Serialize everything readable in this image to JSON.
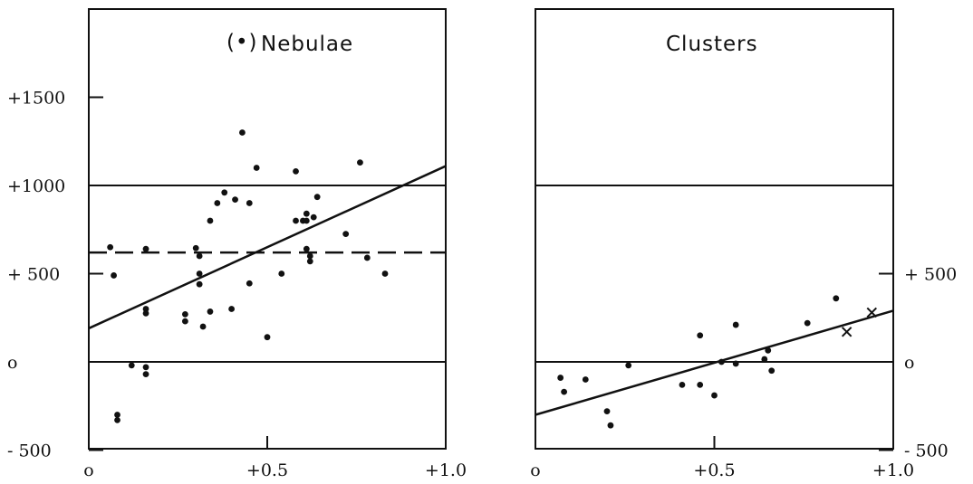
{
  "chart_data": [
    {
      "type": "scatter",
      "title": "Nebulae",
      "title_marker": "(•)",
      "xlim": [
        0,
        1.0
      ],
      "ylim": [
        -500,
        2000
      ],
      "x_ticks": [
        {
          "value": 0,
          "label": "o"
        },
        {
          "value": 0.5,
          "label": "+0.5"
        },
        {
          "value": 1.0,
          "label": "+1.0"
        }
      ],
      "y_ticks": [
        {
          "value": 1500,
          "label": "+1500"
        },
        {
          "value": 1000,
          "label": "+1000"
        },
        {
          "value": 500,
          "label": "+ 500"
        },
        {
          "value": 0,
          "label": "o"
        },
        {
          "value": -500,
          "label": "- 500"
        }
      ],
      "reference_lines": [
        0,
        1000
      ],
      "mean_line": 620,
      "fit_line": {
        "x": [
          0,
          1.0
        ],
        "y": [
          190,
          1110
        ]
      },
      "points": [
        {
          "x": 0.06,
          "y": 650
        },
        {
          "x": 0.07,
          "y": 490
        },
        {
          "x": 0.08,
          "y": -300
        },
        {
          "x": 0.08,
          "y": -330
        },
        {
          "x": 0.12,
          "y": -20
        },
        {
          "x": 0.16,
          "y": 640
        },
        {
          "x": 0.16,
          "y": 300
        },
        {
          "x": 0.16,
          "y": 275
        },
        {
          "x": 0.16,
          "y": -30
        },
        {
          "x": 0.16,
          "y": -70
        },
        {
          "x": 0.27,
          "y": 270
        },
        {
          "x": 0.27,
          "y": 230
        },
        {
          "x": 0.3,
          "y": 645
        },
        {
          "x": 0.31,
          "y": 600
        },
        {
          "x": 0.31,
          "y": 500
        },
        {
          "x": 0.31,
          "y": 440
        },
        {
          "x": 0.32,
          "y": 200
        },
        {
          "x": 0.34,
          "y": 800
        },
        {
          "x": 0.34,
          "y": 285
        },
        {
          "x": 0.36,
          "y": 900
        },
        {
          "x": 0.38,
          "y": 960
        },
        {
          "x": 0.4,
          "y": 300
        },
        {
          "x": 0.41,
          "y": 920
        },
        {
          "x": 0.43,
          "y": 1300
        },
        {
          "x": 0.45,
          "y": 900
        },
        {
          "x": 0.45,
          "y": 445
        },
        {
          "x": 0.47,
          "y": 1100
        },
        {
          "x": 0.5,
          "y": 140
        },
        {
          "x": 0.54,
          "y": 500
        },
        {
          "x": 0.58,
          "y": 1080
        },
        {
          "x": 0.58,
          "y": 800
        },
        {
          "x": 0.6,
          "y": 800
        },
        {
          "x": 0.61,
          "y": 840
        },
        {
          "x": 0.61,
          "y": 800
        },
        {
          "x": 0.61,
          "y": 640
        },
        {
          "x": 0.62,
          "y": 600
        },
        {
          "x": 0.62,
          "y": 570
        },
        {
          "x": 0.63,
          "y": 820
        },
        {
          "x": 0.64,
          "y": 935
        },
        {
          "x": 0.72,
          "y": 725
        },
        {
          "x": 0.76,
          "y": 1130
        },
        {
          "x": 0.78,
          "y": 590
        },
        {
          "x": 0.83,
          "y": 500
        }
      ]
    },
    {
      "type": "scatter",
      "title": "Clusters",
      "xlim": [
        0,
        1.0
      ],
      "ylim": [
        -500,
        2000
      ],
      "x_ticks": [
        {
          "value": 0,
          "label": "o"
        },
        {
          "value": 0.5,
          "label": "+0.5"
        },
        {
          "value": 1.0,
          "label": "+1.0"
        }
      ],
      "y_ticks": [
        {
          "value": 500,
          "label": "+ 500"
        },
        {
          "value": 0,
          "label": "o"
        },
        {
          "value": -500,
          "label": "- 500"
        }
      ],
      "reference_lines": [
        0,
        1000
      ],
      "fit_line": {
        "x": [
          0,
          1.0
        ],
        "y": [
          -300,
          290
        ]
      },
      "points": [
        {
          "x": 0.07,
          "y": -90
        },
        {
          "x": 0.08,
          "y": -170
        },
        {
          "x": 0.14,
          "y": -100
        },
        {
          "x": 0.2,
          "y": -280
        },
        {
          "x": 0.21,
          "y": -360
        },
        {
          "x": 0.26,
          "y": -20
        },
        {
          "x": 0.41,
          "y": -130
        },
        {
          "x": 0.46,
          "y": 150
        },
        {
          "x": 0.46,
          "y": -130
        },
        {
          "x": 0.5,
          "y": -190
        },
        {
          "x": 0.52,
          "y": 0
        },
        {
          "x": 0.56,
          "y": 210
        },
        {
          "x": 0.56,
          "y": -10
        },
        {
          "x": 0.64,
          "y": 15
        },
        {
          "x": 0.65,
          "y": 65
        },
        {
          "x": 0.66,
          "y": -50
        },
        {
          "x": 0.76,
          "y": 220
        },
        {
          "x": 0.84,
          "y": 360
        }
      ],
      "cross_points": [
        {
          "x": 0.87,
          "y": 170
        },
        {
          "x": 0.94,
          "y": 280
        }
      ]
    }
  ]
}
